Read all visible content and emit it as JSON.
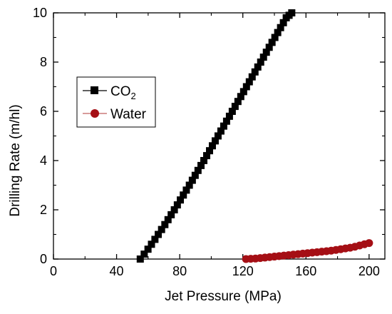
{
  "chart_data": {
    "type": "scatter",
    "xlabel": "Jet Pressure (MPa)",
    "ylabel": "Drilling Rate (m/hl)",
    "xlim": [
      0,
      210
    ],
    "ylim": [
      0,
      10
    ],
    "x_ticks": [
      0,
      40,
      80,
      120,
      160,
      200
    ],
    "y_ticks": [
      0,
      2,
      4,
      6,
      8,
      10
    ],
    "grid": false,
    "legend_position": "middle-left",
    "series": [
      {
        "name": "CO2",
        "legend_main": "CO",
        "legend_sub": "2",
        "color": "#000000",
        "marker": "square",
        "x": [
          55,
          57.5,
          59.9,
          62.1,
          64.3,
          66.4,
          68.5,
          70.6,
          72.6,
          74.6,
          76.6,
          78.5,
          80.4,
          82.3,
          84.2,
          86.1,
          88,
          89.8,
          91.6,
          93.5,
          95.3,
          97.1,
          98.9,
          100.7,
          102.5,
          104.3,
          106.1,
          107.9,
          109.7,
          111.5,
          113.3,
          115.1,
          116.9,
          118.7,
          120.5,
          122.3,
          124.1,
          125.9,
          127.7,
          129.5,
          131.3,
          133.1,
          134.9,
          136.7,
          138.5,
          140.3,
          142.1,
          143.9,
          145.7,
          147.5,
          149.3,
          151
        ],
        "y": [
          0,
          0.2,
          0.4,
          0.6,
          0.8,
          1.0,
          1.2,
          1.4,
          1.6,
          1.8,
          2.0,
          2.2,
          2.4,
          2.6,
          2.8,
          3.0,
          3.2,
          3.4,
          3.6,
          3.8,
          4.0,
          4.2,
          4.4,
          4.6,
          4.8,
          5.0,
          5.2,
          5.4,
          5.6,
          5.8,
          6.0,
          6.2,
          6.4,
          6.6,
          6.8,
          7.0,
          7.2,
          7.4,
          7.6,
          7.8,
          8.0,
          8.2,
          8.4,
          8.6,
          8.8,
          9.0,
          9.2,
          9.4,
          9.6,
          9.8,
          9.9,
          10.0
        ]
      },
      {
        "name": "Water",
        "legend_main": "Water",
        "legend_sub": "",
        "color": "#a50f15",
        "marker": "circle",
        "x": [
          122,
          125,
          128,
          131,
          134,
          137,
          140,
          143,
          146,
          149,
          152,
          155,
          158,
          161,
          164,
          167,
          170,
          173,
          176,
          179,
          182,
          185,
          188,
          191,
          194,
          197,
          200
        ],
        "y": [
          0,
          0.01,
          0.02,
          0.04,
          0.06,
          0.08,
          0.1,
          0.12,
          0.14,
          0.16,
          0.18,
          0.2,
          0.22,
          0.24,
          0.26,
          0.28,
          0.3,
          0.32,
          0.34,
          0.37,
          0.4,
          0.43,
          0.46,
          0.5,
          0.55,
          0.6,
          0.65
        ]
      }
    ]
  }
}
